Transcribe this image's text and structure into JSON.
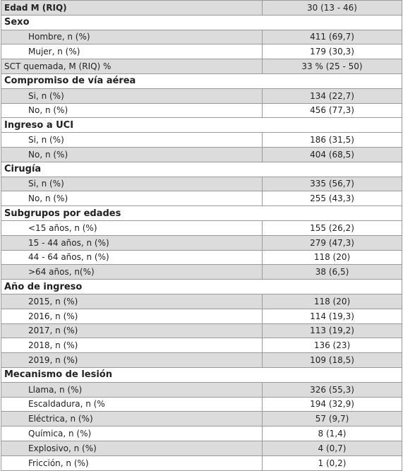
{
  "table": {
    "items": [
      {
        "label": "Edad M (RIQ)",
        "value": "30 (13 - 46)"
      },
      {
        "heading": "Sexo",
        "rows": [
          [
            "Hombre, n (%)",
            "411 (69,7)"
          ],
          [
            "Mujer, n (%)",
            "179 (30,3)"
          ]
        ]
      },
      {
        "label": "SCT quemada, M (RIQ) %",
        "value": "33 % (25 - 50)"
      },
      {
        "heading": "Compromiso de vía aérea",
        "rows": [
          [
            "Si, n (%)",
            "134 (22,7)"
          ],
          [
            "No, n (%)",
            "456 (77,3)"
          ]
        ]
      },
      {
        "heading": "Ingreso a UCI",
        "rows": [
          [
            "Si, n (%)",
            "186 (31,5)"
          ],
          [
            "No, n (%)",
            "404 (68,5)"
          ]
        ]
      },
      {
        "heading": "Cirugía",
        "rows": [
          [
            "Si, n (%)",
            "335 (56,7)"
          ],
          [
            "No, n (%)",
            "255 (43,3)"
          ]
        ]
      },
      {
        "heading": "Subgrupos por edades",
        "rows": [
          [
            "<15 años, n (%)",
            "155 (26,2)"
          ],
          [
            "15 - 44 años, n (%)",
            "279 (47,3)"
          ],
          [
            "44 - 64 años, n (%)",
            "118 (20)"
          ],
          [
            ">64 años, n(%)",
            "38 (6,5)"
          ]
        ]
      },
      {
        "heading": "Año de ingreso",
        "rows": [
          [
            "2015, n (%)",
            "118 (20)"
          ],
          [
            "2016, n (%)",
            "114 (19,3)"
          ],
          [
            "2017, n (%)",
            "113 (19,2)"
          ],
          [
            "2018, n (%)",
            "136 (23)"
          ],
          [
            "2019, n (%)",
            "109 (18,5)"
          ]
        ]
      },
      {
        "heading": "Mecanismo de lesión",
        "rows": [
          [
            "Llama, n (%)",
            "326 (55,3)"
          ],
          [
            "Escaldadura, n (%",
            "194 (32,9)"
          ],
          [
            "Eléctrica, n (%)",
            "57 (9,7)"
          ],
          [
            "Química, n (%)",
            "8 (1,4)"
          ],
          [
            "Explosivo, n (%)",
            "4 (0,7)"
          ],
          [
            "Fricción, n (%)",
            "1 (0,2)"
          ]
        ]
      }
    ]
  }
}
